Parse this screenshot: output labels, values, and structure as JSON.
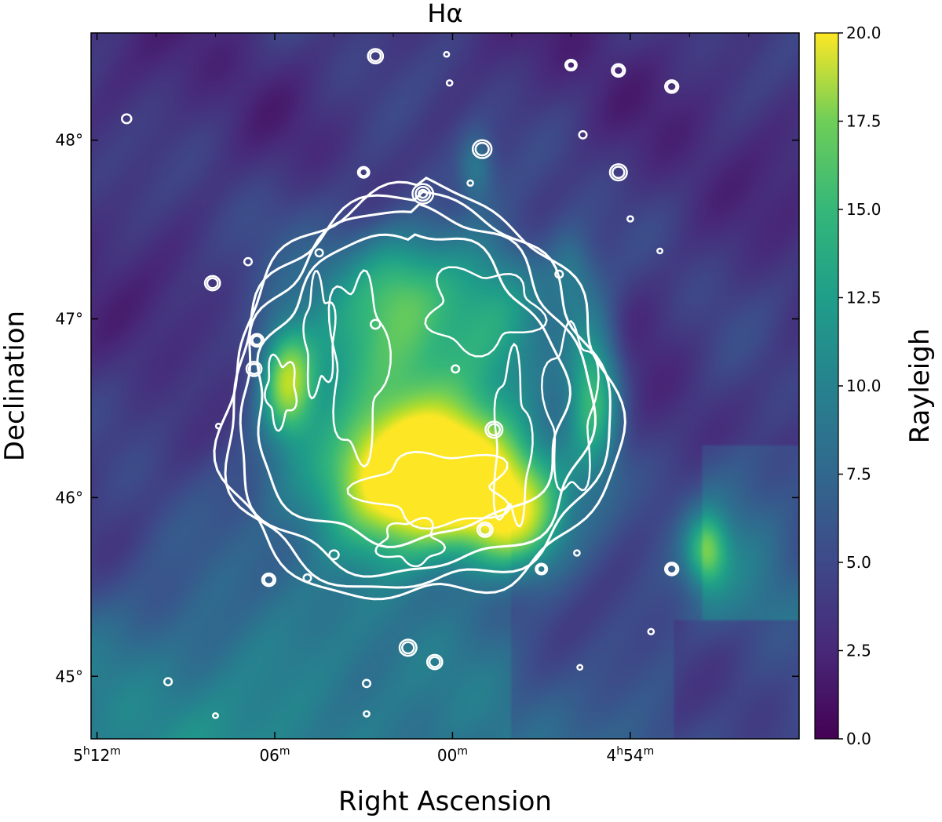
{
  "chart_data": {
    "type": "heatmap",
    "title": "Hα",
    "xlabel": "Right Ascension",
    "ylabel": "Declination",
    "colorbar_label": "Rayleigh",
    "colorbar_range": [
      0.0,
      20.0
    ],
    "colorbar_ticks": [
      "0.0",
      "2.5",
      "5.0",
      "7.5",
      "10.0",
      "12.5",
      "15.0",
      "17.5",
      "20.0"
    ],
    "colormap": "viridis",
    "x_ticks": [
      {
        "h": "5",
        "m": "12",
        "ra_min": 312
      },
      {
        "h": "",
        "m": "06",
        "ra_min": 306
      },
      {
        "h": "",
        "m": "00",
        "ra_min": 300
      },
      {
        "h": "4",
        "m": "54",
        "ra_min": 294
      }
    ],
    "x_range_ra_min": [
      312.2,
      288.3
    ],
    "y_ticks": [
      {
        "label": "45°",
        "dec": 45
      },
      {
        "label": "46°",
        "dec": 46
      },
      {
        "label": "47°",
        "dec": 47
      },
      {
        "label": "48°",
        "dec": 48
      }
    ],
    "y_range_deg": [
      44.65,
      48.6
    ],
    "contour_color": "#ffffff",
    "remnant_center": {
      "ra_min": 301.2,
      "dec": 46.55
    },
    "blobs": [
      {
        "ra_min": 300.4,
        "dec": 46.05,
        "r_ra": 3.2,
        "r_dec": 0.35,
        "amp": 14
      },
      {
        "ra_min": 301.2,
        "dec": 46.2,
        "r_ra": 2.5,
        "r_dec": 0.3,
        "amp": 8
      },
      {
        "ra_min": 305.6,
        "dec": 46.65,
        "r_ra": 0.9,
        "r_dec": 0.3,
        "amp": 11
      },
      {
        "ra_min": 295.2,
        "dec": 46.6,
        "r_ra": 0.9,
        "r_dec": 0.45,
        "amp": 10
      },
      {
        "ra_min": 297.8,
        "dec": 45.85,
        "r_ra": 1.6,
        "r_dec": 0.3,
        "amp": 9
      },
      {
        "ra_min": 302.0,
        "dec": 46.7,
        "r_ra": 4.0,
        "r_dec": 0.9,
        "amp": 6
      },
      {
        "ra_min": 298.5,
        "dec": 47.1,
        "r_ra": 2.0,
        "r_dec": 0.4,
        "amp": 5
      },
      {
        "ra_min": 296.0,
        "dec": 47.25,
        "r_ra": 0.8,
        "r_dec": 0.25,
        "amp": 4
      },
      {
        "ra_min": 301.8,
        "dec": 47.2,
        "r_ra": 1.5,
        "r_dec": 0.3,
        "amp": 4
      },
      {
        "ra_min": 291.4,
        "dec": 45.7,
        "r_ra": 0.7,
        "r_dec": 0.2,
        "amp": 8
      },
      {
        "ra_min": 299.2,
        "dec": 47.85,
        "r_ra": 0.6,
        "r_dec": 0.2,
        "amp": 4
      },
      {
        "ra_min": 306.5,
        "dec": 45.0,
        "r_ra": 5.0,
        "r_dec": 0.6,
        "amp": 2.5
      },
      {
        "ra_min": 290.5,
        "dec": 45.9,
        "r_ra": 2.0,
        "r_dec": 0.8,
        "amp": 2
      }
    ],
    "shell_contours": [
      {
        "rx_ra": 6.6,
        "ry_dec": 1.13,
        "dx": 0.0,
        "dy": -0.02
      },
      {
        "rx_ra": 6.35,
        "ry_dec": 1.08,
        "dx": 0.1,
        "dy": -0.01
      },
      {
        "rx_ra": 5.9,
        "ry_dec": 1.0,
        "dx": 0.2,
        "dy": 0.0
      },
      {
        "rx_ra": 5.2,
        "ry_dec": 0.85,
        "dx": 0.3,
        "dy": 0.03
      }
    ],
    "sources": [
      {
        "ra_min": 302.6,
        "dec": 48.47,
        "r": 0.04
      },
      {
        "ra_min": 300.2,
        "dec": 48.48,
        "r": 0.01
      },
      {
        "ra_min": 296.0,
        "dec": 48.42,
        "r": 0.03
      },
      {
        "ra_min": 294.4,
        "dec": 48.39,
        "r": 0.035
      },
      {
        "ra_min": 292.6,
        "dec": 48.3,
        "r": 0.035
      },
      {
        "ra_min": 300.1,
        "dec": 48.32,
        "r": 0.015
      },
      {
        "ra_min": 311.0,
        "dec": 48.12,
        "r": 0.025
      },
      {
        "ra_min": 299.0,
        "dec": 47.95,
        "r": 0.05
      },
      {
        "ra_min": 295.6,
        "dec": 48.03,
        "r": 0.02
      },
      {
        "ra_min": 294.4,
        "dec": 47.82,
        "r": 0.045
      },
      {
        "ra_min": 303.0,
        "dec": 47.82,
        "r": 0.03
      },
      {
        "ra_min": 301.0,
        "dec": 47.7,
        "r": 0.055
      },
      {
        "ra_min": 299.4,
        "dec": 47.76,
        "r": 0.015
      },
      {
        "ra_min": 294.0,
        "dec": 47.56,
        "r": 0.015
      },
      {
        "ra_min": 293.0,
        "dec": 47.38,
        "r": 0.01
      },
      {
        "ra_min": 308.1,
        "dec": 47.2,
        "r": 0.04
      },
      {
        "ra_min": 306.9,
        "dec": 47.32,
        "r": 0.02
      },
      {
        "ra_min": 304.5,
        "dec": 47.37,
        "r": 0.02
      },
      {
        "ra_min": 306.6,
        "dec": 46.88,
        "r": 0.035
      },
      {
        "ra_min": 306.7,
        "dec": 46.72,
        "r": 0.04
      },
      {
        "ra_min": 307.9,
        "dec": 46.4,
        "r": 0.01
      },
      {
        "ra_min": 304.0,
        "dec": 45.68,
        "r": 0.025
      },
      {
        "ra_min": 306.2,
        "dec": 45.54,
        "r": 0.035
      },
      {
        "ra_min": 304.9,
        "dec": 45.55,
        "r": 0.02
      },
      {
        "ra_min": 301.5,
        "dec": 45.16,
        "r": 0.045
      },
      {
        "ra_min": 300.6,
        "dec": 45.08,
        "r": 0.04
      },
      {
        "ra_min": 302.9,
        "dec": 44.96,
        "r": 0.02
      },
      {
        "ra_min": 302.9,
        "dec": 44.79,
        "r": 0.015
      },
      {
        "ra_min": 308.0,
        "dec": 44.78,
        "r": 0.01
      },
      {
        "ra_min": 309.6,
        "dec": 44.97,
        "r": 0.02
      },
      {
        "ra_min": 298.9,
        "dec": 45.82,
        "r": 0.04
      },
      {
        "ra_min": 297.0,
        "dec": 45.6,
        "r": 0.03
      },
      {
        "ra_min": 295.8,
        "dec": 45.69,
        "r": 0.015
      },
      {
        "ra_min": 292.6,
        "dec": 45.6,
        "r": 0.035
      },
      {
        "ra_min": 293.3,
        "dec": 45.25,
        "r": 0.015
      },
      {
        "ra_min": 295.7,
        "dec": 45.05,
        "r": 0.01
      },
      {
        "ra_min": 298.6,
        "dec": 46.38,
        "r": 0.045
      },
      {
        "ra_min": 299.9,
        "dec": 46.72,
        "r": 0.02
      },
      {
        "ra_min": 302.6,
        "dec": 46.97,
        "r": 0.025
      },
      {
        "ra_min": 296.4,
        "dec": 47.25,
        "r": 0.02
      }
    ]
  }
}
